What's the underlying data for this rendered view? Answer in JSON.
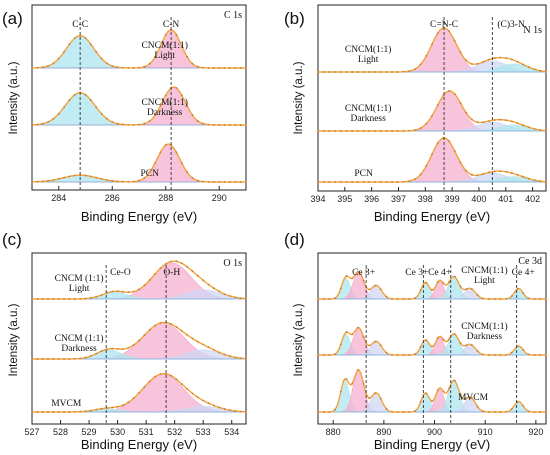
{
  "figure": {
    "xlabel": "Binding Energy (eV)",
    "ylabel": "Intensity (a.u.)"
  },
  "chart_data": [
    {
      "panel": "(a)",
      "type": "line",
      "title": "C 1s",
      "xlim": [
        283,
        291
      ],
      "x_ticks": [
        284,
        286,
        288,
        290
      ],
      "ref_lines": [
        284.8,
        288.2
      ],
      "peak_labels": [
        {
          "text": "C-C",
          "x": 284.8
        },
        {
          "text": "C-N",
          "x": 288.2
        }
      ],
      "series": [
        {
          "name": "CNCM(1:1) Light",
          "components": [
            {
              "center": 284.8,
              "fwhm": 1.2,
              "height": 0.85,
              "color": "#aee5ef"
            },
            {
              "center": 288.2,
              "fwhm": 0.9,
              "height": 1.0,
              "color": "#f5b0cf"
            }
          ]
        },
        {
          "name": "CNCM(1:1) Darkness",
          "components": [
            {
              "center": 284.8,
              "fwhm": 1.3,
              "height": 0.85,
              "color": "#aee5ef"
            },
            {
              "center": 288.3,
              "fwhm": 1.0,
              "height": 1.0,
              "color": "#f5b0cf"
            }
          ]
        },
        {
          "name": "PCN",
          "components": [
            {
              "center": 284.8,
              "fwhm": 1.5,
              "height": 0.18,
              "color": "#aee5ef"
            },
            {
              "center": 288.1,
              "fwhm": 1.0,
              "height": 1.0,
              "color": "#f5b0cf"
            }
          ]
        }
      ]
    },
    {
      "panel": "(b)",
      "type": "line",
      "title": "N 1s",
      "xlim": [
        394,
        402.5
      ],
      "x_ticks": [
        394,
        395,
        396,
        397,
        398,
        399,
        400,
        401,
        402
      ],
      "ref_lines": [
        398.7,
        400.5
      ],
      "peak_labels": [
        {
          "text": "C=N-C",
          "x": 398.7
        },
        {
          "text": "(C)3-N",
          "x": 401.2
        }
      ],
      "series": [
        {
          "name": "CNCM(1:1) Light",
          "components": [
            {
              "center": 398.7,
              "fwhm": 1.1,
              "height": 1.0,
              "color": "#f5b0cf"
            },
            {
              "center": 400.5,
              "fwhm": 1.3,
              "height": 0.25,
              "color": "#cfd7f4"
            },
            {
              "center": 401.3,
              "fwhm": 1.2,
              "height": 0.18,
              "color": "#aee5ef"
            }
          ]
        },
        {
          "name": "CNCM(1:1) Darkness",
          "components": [
            {
              "center": 398.9,
              "fwhm": 1.1,
              "height": 1.0,
              "color": "#f5b0cf"
            },
            {
              "center": 400.5,
              "fwhm": 1.3,
              "height": 0.22,
              "color": "#cfd7f4"
            },
            {
              "center": 401.3,
              "fwhm": 1.2,
              "height": 0.15,
              "color": "#aee5ef"
            }
          ]
        },
        {
          "name": "PCN",
          "components": [
            {
              "center": 398.7,
              "fwhm": 1.1,
              "height": 1.0,
              "color": "#f5b0cf"
            },
            {
              "center": 400.5,
              "fwhm": 1.3,
              "height": 0.2,
              "color": "#cfd7f4"
            },
            {
              "center": 401.3,
              "fwhm": 1.2,
              "height": 0.12,
              "color": "#aee5ef"
            }
          ]
        }
      ]
    },
    {
      "panel": "(c)",
      "type": "line",
      "title": "O 1s",
      "xlim": [
        527,
        534.5
      ],
      "x_ticks": [
        527,
        528,
        529,
        530,
        531,
        532,
        533,
        534
      ],
      "ref_lines": [
        529.6,
        531.7
      ],
      "peak_labels": [
        {
          "text": "Ce-O",
          "x": 530.1
        },
        {
          "text": "O-H",
          "x": 531.9
        }
      ],
      "series": [
        {
          "name": "CNCM (1:1) Light",
          "components": [
            {
              "center": 531.9,
              "fwhm": 1.6,
              "height": 1.0,
              "color": "#f5b0cf"
            },
            {
              "center": 529.9,
              "fwhm": 1.0,
              "height": 0.2,
              "color": "#aee5ef"
            },
            {
              "center": 533.0,
              "fwhm": 1.4,
              "height": 0.25,
              "color": "#cfd7f4"
            }
          ]
        },
        {
          "name": "CNCM (1:1) Darkness",
          "components": [
            {
              "center": 531.6,
              "fwhm": 1.7,
              "height": 1.0,
              "color": "#f5b0cf"
            },
            {
              "center": 529.7,
              "fwhm": 1.0,
              "height": 0.25,
              "color": "#aee5ef"
            },
            {
              "center": 533.0,
              "fwhm": 1.4,
              "height": 0.25,
              "color": "#cfd7f4"
            }
          ]
        },
        {
          "name": "MVCM",
          "components": [
            {
              "center": 531.6,
              "fwhm": 1.7,
              "height": 1.0,
              "color": "#f5b0cf"
            },
            {
              "center": 529.6,
              "fwhm": 1.0,
              "height": 0.08,
              "color": "#aee5ef"
            },
            {
              "center": 533.0,
              "fwhm": 1.4,
              "height": 0.15,
              "color": "#cfd7f4"
            }
          ]
        }
      ]
    },
    {
      "panel": "(d)",
      "type": "line",
      "title": "Ce 3d",
      "xlim": [
        877,
        922
      ],
      "x_ticks": [
        880,
        890,
        900,
        910,
        920
      ],
      "ref_lines": [
        886.5,
        897.8,
        903.2,
        916.2
      ],
      "peak_labels": [
        {
          "text": "Ce 3+",
          "x": 886.0,
          "color": "#e0408a"
        },
        {
          "text": "Ce 3+",
          "x": 896.5,
          "color": "#e0408a"
        },
        {
          "text": "Ce 4+",
          "x": 901.0,
          "color": "#2bb3b3"
        },
        {
          "text": "Ce 4+",
          "x": 917.5,
          "color": "#2bb3b3"
        }
      ],
      "series": [
        {
          "name": "CNCM(1:1) Light",
          "components": [
            {
              "center": 882.5,
              "fwhm": 2.0,
              "height": 0.7,
              "color": "#aee5ef"
            },
            {
              "center": 885.0,
              "fwhm": 2.5,
              "height": 0.9,
              "color": "#f5b0cf"
            },
            {
              "center": 888.5,
              "fwhm": 2.5,
              "height": 0.45,
              "color": "#cfd7f4"
            },
            {
              "center": 898.2,
              "fwhm": 2.0,
              "height": 0.55,
              "color": "#aee5ef"
            },
            {
              "center": 901.0,
              "fwhm": 2.0,
              "height": 0.6,
              "color": "#f5b0cf"
            },
            {
              "center": 903.8,
              "fwhm": 2.5,
              "height": 0.75,
              "color": "#aee5ef"
            },
            {
              "center": 907.0,
              "fwhm": 2.5,
              "height": 0.35,
              "color": "#cfd7f4"
            },
            {
              "center": 916.6,
              "fwhm": 2.0,
              "height": 0.35,
              "color": "#aee5ef"
            }
          ]
        },
        {
          "name": "CNCM(1:1) Darkness",
          "components": [
            {
              "center": 882.5,
              "fwhm": 2.0,
              "height": 0.7,
              "color": "#aee5ef"
            },
            {
              "center": 885.0,
              "fwhm": 2.5,
              "height": 0.9,
              "color": "#f5b0cf"
            },
            {
              "center": 888.5,
              "fwhm": 2.5,
              "height": 0.45,
              "color": "#cfd7f4"
            },
            {
              "center": 898.2,
              "fwhm": 2.0,
              "height": 0.5,
              "color": "#aee5ef"
            },
            {
              "center": 901.0,
              "fwhm": 2.0,
              "height": 0.6,
              "color": "#f5b0cf"
            },
            {
              "center": 903.8,
              "fwhm": 2.5,
              "height": 0.7,
              "color": "#aee5ef"
            },
            {
              "center": 907.0,
              "fwhm": 2.5,
              "height": 0.35,
              "color": "#cfd7f4"
            },
            {
              "center": 916.6,
              "fwhm": 2.0,
              "height": 0.3,
              "color": "#aee5ef"
            }
          ]
        },
        {
          "name": "MVCM",
          "components": [
            {
              "center": 882.3,
              "fwhm": 2.0,
              "height": 0.75,
              "color": "#aee5ef"
            },
            {
              "center": 885.0,
              "fwhm": 2.5,
              "height": 1.0,
              "color": "#f5b0cf"
            },
            {
              "center": 888.5,
              "fwhm": 2.5,
              "height": 0.45,
              "color": "#cfd7f4"
            },
            {
              "center": 898.2,
              "fwhm": 2.0,
              "height": 0.45,
              "color": "#aee5ef"
            },
            {
              "center": 901.0,
              "fwhm": 2.0,
              "height": 0.55,
              "color": "#f5b0cf"
            },
            {
              "center": 903.8,
              "fwhm": 2.5,
              "height": 0.75,
              "color": "#aee5ef"
            },
            {
              "center": 907.0,
              "fwhm": 2.5,
              "height": 0.35,
              "color": "#cfd7f4"
            },
            {
              "center": 916.6,
              "fwhm": 2.0,
              "height": 0.25,
              "color": "#aee5ef"
            }
          ]
        }
      ]
    }
  ]
}
